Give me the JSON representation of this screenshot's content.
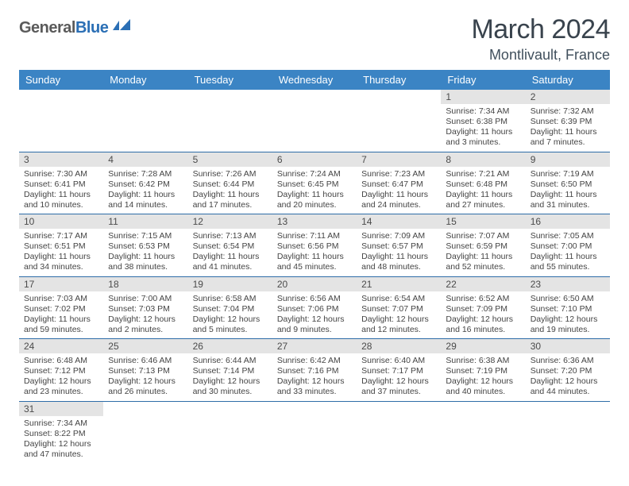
{
  "brand": {
    "part1": "General",
    "part2": "Blue"
  },
  "title": "March 2024",
  "location": "Montlivault, France",
  "colors": {
    "header_bg": "#3b84c4",
    "header_text": "#ffffff",
    "daynum_bg": "#e4e4e4",
    "row_divider": "#2e6da8",
    "title_color": "#39434d",
    "body_text": "#444444"
  },
  "day_headers": [
    "Sunday",
    "Monday",
    "Tuesday",
    "Wednesday",
    "Thursday",
    "Friday",
    "Saturday"
  ],
  "weeks": [
    [
      null,
      null,
      null,
      null,
      null,
      {
        "n": "1",
        "sunrise": "Sunrise: 7:34 AM",
        "sunset": "Sunset: 6:38 PM",
        "day": "Daylight: 11 hours and 3 minutes."
      },
      {
        "n": "2",
        "sunrise": "Sunrise: 7:32 AM",
        "sunset": "Sunset: 6:39 PM",
        "day": "Daylight: 11 hours and 7 minutes."
      }
    ],
    [
      {
        "n": "3",
        "sunrise": "Sunrise: 7:30 AM",
        "sunset": "Sunset: 6:41 PM",
        "day": "Daylight: 11 hours and 10 minutes."
      },
      {
        "n": "4",
        "sunrise": "Sunrise: 7:28 AM",
        "sunset": "Sunset: 6:42 PM",
        "day": "Daylight: 11 hours and 14 minutes."
      },
      {
        "n": "5",
        "sunrise": "Sunrise: 7:26 AM",
        "sunset": "Sunset: 6:44 PM",
        "day": "Daylight: 11 hours and 17 minutes."
      },
      {
        "n": "6",
        "sunrise": "Sunrise: 7:24 AM",
        "sunset": "Sunset: 6:45 PM",
        "day": "Daylight: 11 hours and 20 minutes."
      },
      {
        "n": "7",
        "sunrise": "Sunrise: 7:23 AM",
        "sunset": "Sunset: 6:47 PM",
        "day": "Daylight: 11 hours and 24 minutes."
      },
      {
        "n": "8",
        "sunrise": "Sunrise: 7:21 AM",
        "sunset": "Sunset: 6:48 PM",
        "day": "Daylight: 11 hours and 27 minutes."
      },
      {
        "n": "9",
        "sunrise": "Sunrise: 7:19 AM",
        "sunset": "Sunset: 6:50 PM",
        "day": "Daylight: 11 hours and 31 minutes."
      }
    ],
    [
      {
        "n": "10",
        "sunrise": "Sunrise: 7:17 AM",
        "sunset": "Sunset: 6:51 PM",
        "day": "Daylight: 11 hours and 34 minutes."
      },
      {
        "n": "11",
        "sunrise": "Sunrise: 7:15 AM",
        "sunset": "Sunset: 6:53 PM",
        "day": "Daylight: 11 hours and 38 minutes."
      },
      {
        "n": "12",
        "sunrise": "Sunrise: 7:13 AM",
        "sunset": "Sunset: 6:54 PM",
        "day": "Daylight: 11 hours and 41 minutes."
      },
      {
        "n": "13",
        "sunrise": "Sunrise: 7:11 AM",
        "sunset": "Sunset: 6:56 PM",
        "day": "Daylight: 11 hours and 45 minutes."
      },
      {
        "n": "14",
        "sunrise": "Sunrise: 7:09 AM",
        "sunset": "Sunset: 6:57 PM",
        "day": "Daylight: 11 hours and 48 minutes."
      },
      {
        "n": "15",
        "sunrise": "Sunrise: 7:07 AM",
        "sunset": "Sunset: 6:59 PM",
        "day": "Daylight: 11 hours and 52 minutes."
      },
      {
        "n": "16",
        "sunrise": "Sunrise: 7:05 AM",
        "sunset": "Sunset: 7:00 PM",
        "day": "Daylight: 11 hours and 55 minutes."
      }
    ],
    [
      {
        "n": "17",
        "sunrise": "Sunrise: 7:03 AM",
        "sunset": "Sunset: 7:02 PM",
        "day": "Daylight: 11 hours and 59 minutes."
      },
      {
        "n": "18",
        "sunrise": "Sunrise: 7:00 AM",
        "sunset": "Sunset: 7:03 PM",
        "day": "Daylight: 12 hours and 2 minutes."
      },
      {
        "n": "19",
        "sunrise": "Sunrise: 6:58 AM",
        "sunset": "Sunset: 7:04 PM",
        "day": "Daylight: 12 hours and 5 minutes."
      },
      {
        "n": "20",
        "sunrise": "Sunrise: 6:56 AM",
        "sunset": "Sunset: 7:06 PM",
        "day": "Daylight: 12 hours and 9 minutes."
      },
      {
        "n": "21",
        "sunrise": "Sunrise: 6:54 AM",
        "sunset": "Sunset: 7:07 PM",
        "day": "Daylight: 12 hours and 12 minutes."
      },
      {
        "n": "22",
        "sunrise": "Sunrise: 6:52 AM",
        "sunset": "Sunset: 7:09 PM",
        "day": "Daylight: 12 hours and 16 minutes."
      },
      {
        "n": "23",
        "sunrise": "Sunrise: 6:50 AM",
        "sunset": "Sunset: 7:10 PM",
        "day": "Daylight: 12 hours and 19 minutes."
      }
    ],
    [
      {
        "n": "24",
        "sunrise": "Sunrise: 6:48 AM",
        "sunset": "Sunset: 7:12 PM",
        "day": "Daylight: 12 hours and 23 minutes."
      },
      {
        "n": "25",
        "sunrise": "Sunrise: 6:46 AM",
        "sunset": "Sunset: 7:13 PM",
        "day": "Daylight: 12 hours and 26 minutes."
      },
      {
        "n": "26",
        "sunrise": "Sunrise: 6:44 AM",
        "sunset": "Sunset: 7:14 PM",
        "day": "Daylight: 12 hours and 30 minutes."
      },
      {
        "n": "27",
        "sunrise": "Sunrise: 6:42 AM",
        "sunset": "Sunset: 7:16 PM",
        "day": "Daylight: 12 hours and 33 minutes."
      },
      {
        "n": "28",
        "sunrise": "Sunrise: 6:40 AM",
        "sunset": "Sunset: 7:17 PM",
        "day": "Daylight: 12 hours and 37 minutes."
      },
      {
        "n": "29",
        "sunrise": "Sunrise: 6:38 AM",
        "sunset": "Sunset: 7:19 PM",
        "day": "Daylight: 12 hours and 40 minutes."
      },
      {
        "n": "30",
        "sunrise": "Sunrise: 6:36 AM",
        "sunset": "Sunset: 7:20 PM",
        "day": "Daylight: 12 hours and 44 minutes."
      }
    ],
    [
      {
        "n": "31",
        "sunrise": "Sunrise: 7:34 AM",
        "sunset": "Sunset: 8:22 PM",
        "day": "Daylight: 12 hours and 47 minutes."
      },
      null,
      null,
      null,
      null,
      null,
      null
    ]
  ]
}
